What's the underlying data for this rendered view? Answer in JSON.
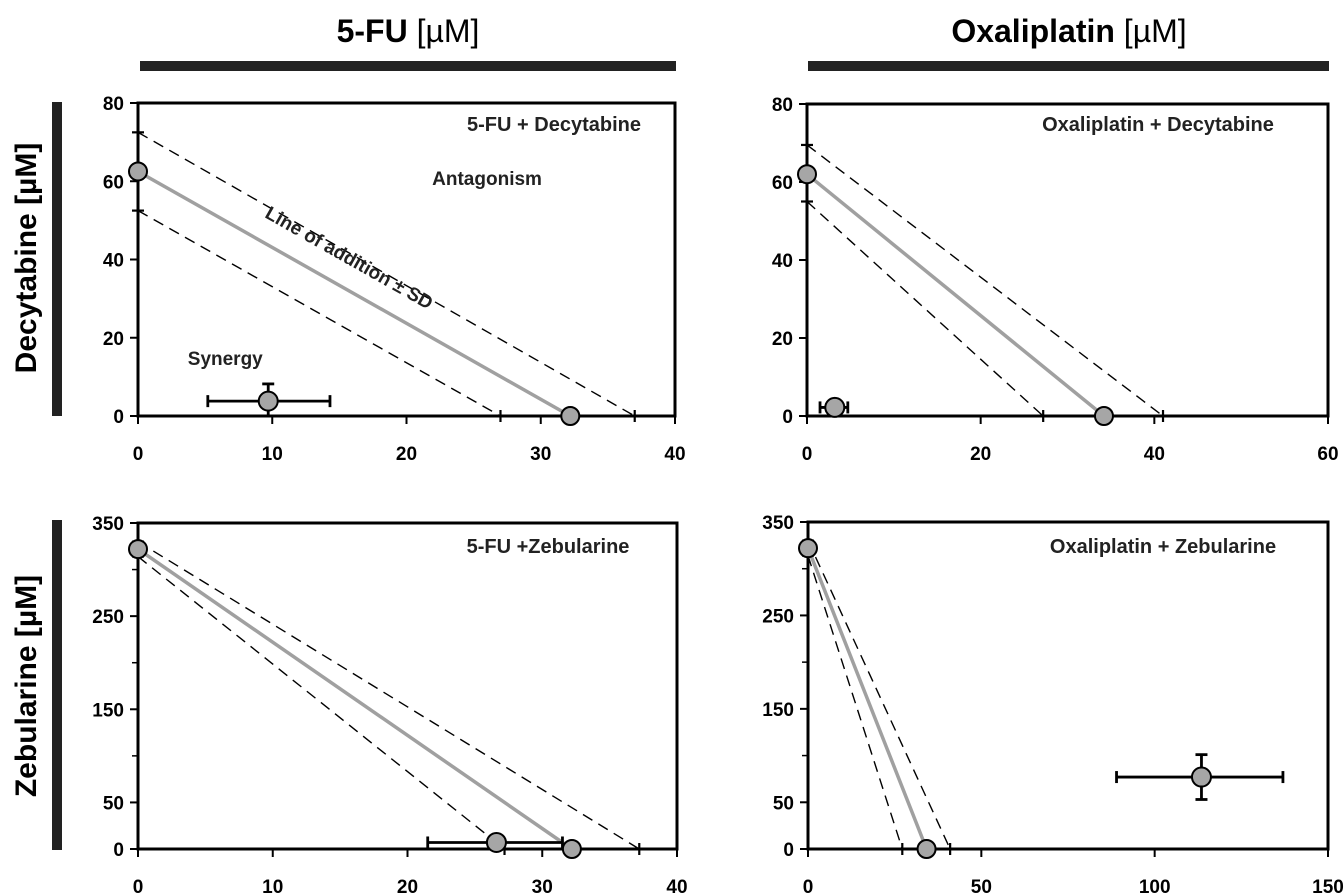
{
  "column_headers": [
    {
      "bold": "5-FU",
      "unit": " [µM]"
    },
    {
      "bold": "Oxaliplatin",
      "unit": " [µM]"
    }
  ],
  "row_headers": [
    "Decytabine [µM]",
    "Zebularine [µM]"
  ],
  "colors": {
    "line_of_addition": "#a0a0a0",
    "points": "#a6a6a6",
    "frame": "#000000"
  },
  "chart_data": [
    {
      "type": "scatter",
      "title": "5-FU + Decytabine",
      "xlim": [
        0,
        40
      ],
      "ylim": [
        0,
        80
      ],
      "x_ticks": [
        0,
        10,
        20,
        30,
        40
      ],
      "y_ticks": [
        0,
        20,
        40,
        60,
        80
      ],
      "x_tick_labels": [
        "0",
        "10",
        "20",
        "30",
        "40"
      ],
      "y_tick_labels": [
        "0",
        "20",
        "40",
        "60",
        "80"
      ],
      "minor_y_ticks": [],
      "line_of_addition": {
        "x_intercept": 32.2,
        "y_intercept": 62.5
      },
      "sd_upper": {
        "x_intercept": 37,
        "y_intercept": 72.5
      },
      "sd_lower": {
        "x_intercept": 27,
        "y_intercept": 52.5
      },
      "single_agent_points": [
        {
          "x": 0,
          "y": 62.5
        },
        {
          "x": 32.2,
          "y": 0
        }
      ],
      "combination_point": {
        "x": 9.7,
        "y": 3.8,
        "x_err": [
          5.2,
          14.3
        ],
        "y_err": [
          0,
          8.2
        ]
      },
      "annotations": [
        {
          "text": "Antagonism",
          "x": 26,
          "y": 59
        },
        {
          "text": "Synergy",
          "x": 6.5,
          "y": 13
        },
        {
          "text": "Line of addition ± SD",
          "x": 15.5,
          "y": 39,
          "rotated": true
        }
      ]
    },
    {
      "type": "scatter",
      "title": "Oxaliplatin + Decytabine",
      "xlim": [
        0,
        60
      ],
      "ylim": [
        0,
        80
      ],
      "x_ticks": [
        0,
        20,
        40,
        60
      ],
      "y_ticks": [
        0,
        20,
        40,
        60,
        80
      ],
      "x_tick_labels": [
        "0",
        "20",
        "40",
        "60"
      ],
      "y_tick_labels": [
        "0",
        "20",
        "40",
        "60",
        "80"
      ],
      "minor_y_ticks": [],
      "line_of_addition": {
        "x_intercept": 34.2,
        "y_intercept": 62
      },
      "sd_upper": {
        "x_intercept": 41,
        "y_intercept": 69.5
      },
      "sd_lower": {
        "x_intercept": 27.2,
        "y_intercept": 55
      },
      "single_agent_points": [
        {
          "x": 0,
          "y": 62
        },
        {
          "x": 34.2,
          "y": 0
        }
      ],
      "combination_point": {
        "x": 3.2,
        "y": 2.2,
        "x_err": [
          1.5,
          4.7
        ],
        "y_err": [
          0,
          3.5
        ]
      },
      "annotations": []
    },
    {
      "type": "scatter",
      "title": "5-FU +Zebularine",
      "xlim": [
        0,
        40
      ],
      "ylim": [
        0,
        350
      ],
      "x_ticks": [
        0,
        10,
        20,
        30,
        40
      ],
      "y_ticks": [
        0,
        50,
        150,
        250,
        350
      ],
      "x_tick_labels": [
        "0",
        "10",
        "20",
        "30",
        "40"
      ],
      "y_tick_labels": [
        "0",
        "50",
        "150",
        "250",
        "350"
      ],
      "minor_y_ticks": [
        100,
        200,
        300
      ],
      "line_of_addition": {
        "x_intercept": 32.2,
        "y_intercept": 322
      },
      "sd_upper": {
        "x_intercept": 37.2,
        "y_intercept": 330
      },
      "sd_lower": {
        "x_intercept": 27.2,
        "y_intercept": 314
      },
      "single_agent_points": [
        {
          "x": 0,
          "y": 322
        },
        {
          "x": 32.2,
          "y": 0
        }
      ],
      "combination_point": {
        "x": 26.6,
        "y": 7,
        "x_err": [
          21.5,
          31.5
        ],
        "y_err": [
          7,
          7
        ]
      },
      "annotations": []
    },
    {
      "type": "scatter",
      "title": "Oxaliplatin + Zebularine",
      "xlim": [
        0,
        150
      ],
      "ylim": [
        0,
        350
      ],
      "x_ticks": [
        0,
        50,
        100,
        150
      ],
      "y_ticks": [
        0,
        50,
        150,
        250,
        350
      ],
      "x_tick_labels": [
        "0",
        "50",
        "100",
        "150"
      ],
      "y_tick_labels": [
        "0",
        "50",
        "150",
        "250",
        "350"
      ],
      "minor_y_ticks": [
        100,
        200,
        300
      ],
      "line_of_addition": {
        "x_intercept": 34.2,
        "y_intercept": 322
      },
      "sd_upper": {
        "x_intercept": 41,
        "y_intercept": 330
      },
      "sd_lower": {
        "x_intercept": 27.2,
        "y_intercept": 314
      },
      "single_agent_points": [
        {
          "x": 0,
          "y": 322
        },
        {
          "x": 34.2,
          "y": 0
        }
      ],
      "combination_point": {
        "x": 113.5,
        "y": 77,
        "x_err": [
          89,
          137
        ],
        "y_err": [
          53,
          101
        ]
      },
      "annotations": []
    }
  ]
}
